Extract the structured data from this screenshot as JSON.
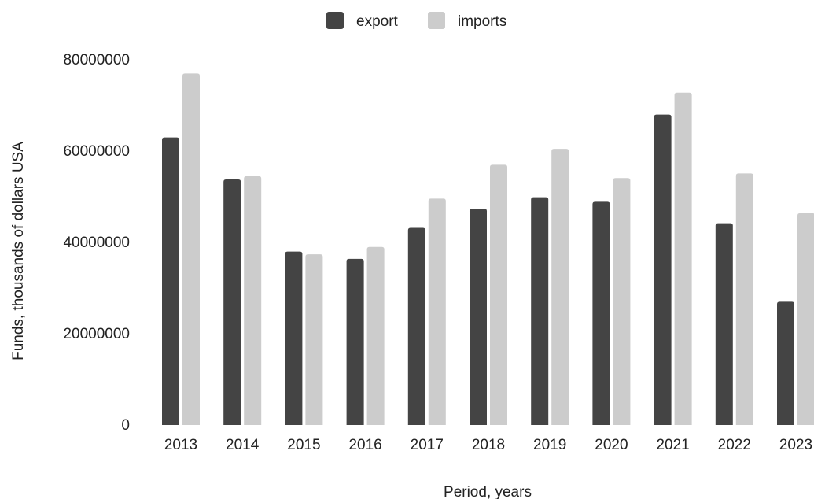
{
  "chart_data": {
    "type": "bar",
    "title": "",
    "xlabel": "Period, years",
    "ylabel": "Funds, thousands of dollars USA",
    "categories": [
      "2013",
      "2014",
      "2015",
      "2016",
      "2017",
      "2018",
      "2019",
      "2020",
      "2021",
      "2022",
      "2023"
    ],
    "series": [
      {
        "name": "export",
        "color": "#444444",
        "values": [
          63000000,
          53800000,
          38000000,
          36400000,
          43200000,
          47400000,
          49900000,
          48900000,
          68000000,
          44200000,
          27000000
        ]
      },
      {
        "name": "imports",
        "color": "#cccccc",
        "values": [
          77000000,
          54500000,
          37400000,
          39000000,
          49600000,
          57000000,
          60500000,
          54100000,
          72800000,
          55100000,
          46400000
        ]
      }
    ],
    "ylim": [
      0,
      80000000
    ],
    "yticks": [
      "0",
      "20000000",
      "40000000",
      "60000000",
      "80000000"
    ],
    "grid": false,
    "legend_position": "top-center"
  }
}
